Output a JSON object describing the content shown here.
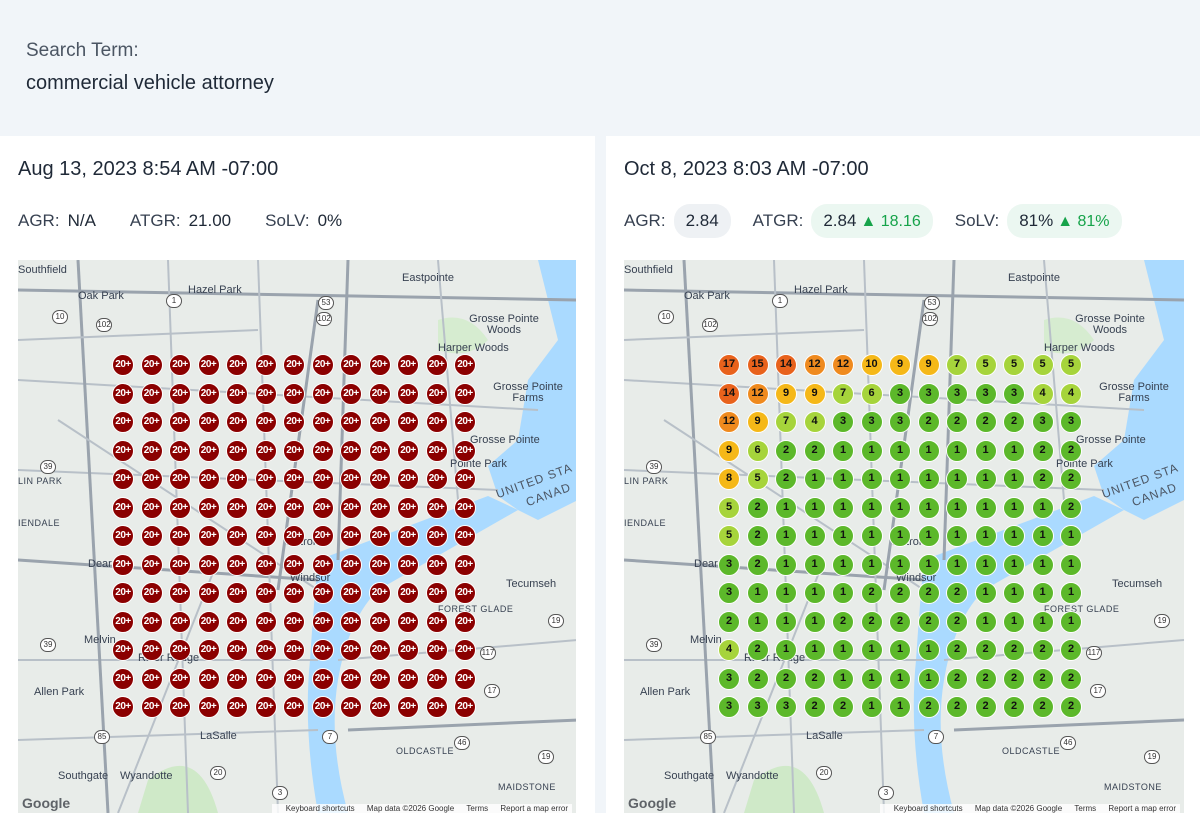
{
  "search": {
    "label": "Search Term:",
    "term": "commercial vehicle attorney"
  },
  "colors": {
    "rank_20plus": "#8b0000",
    "rank_top3": "#5cb82a",
    "rank_4_7": "#a6d43b",
    "rank_8_10": "#f5b818",
    "rank_11_13": "#ef8a1e",
    "rank_14_plus": "#e8621c",
    "delta_up": "#16a34a"
  },
  "map_labels": {
    "southfield": "Southfield",
    "oak_park": "Oak Park",
    "hazel_park": "Hazel Park",
    "eastpointe": "Eastpointe",
    "grosse_pointe_woods": "Grosse Pointe Woods",
    "harper_woods": "Harper Woods",
    "grosse_pointe_farms": "Grosse Pointe Farms",
    "grosse_pointe": "Grosse Pointe",
    "pointe_park": "Pointe Park",
    "lin_park": "LIN PARK",
    "iendale": "IENDALE",
    "united_states": "UNITED STA",
    "canada": "CANAD",
    "detroit": "Detroit",
    "windsor": "Windsor",
    "dear": "Dear",
    "tecumseh": "Tecumseh",
    "forest_glade": "FOREST GLADE",
    "melvin": "Melvin",
    "river_rouge": "River Rouge",
    "allen_park": "Allen Park",
    "lasalle": "LaSalle",
    "oldcastle": "OLDCASTLE",
    "southgate": "Southgate",
    "wyandotte": "Wyandotte",
    "maidstone": "MAIDSTONE",
    "google": "Google",
    "keyboard_shortcuts": "Keyboard shortcuts",
    "map_data": "Map data ©2026 Google",
    "terms": "Terms",
    "report": "Report a map error",
    "shields": [
      "10",
      "102",
      "1",
      "53",
      "102",
      "39",
      "39",
      "85",
      "20",
      "3",
      "7",
      "46",
      "19",
      "17",
      "117",
      "19"
    ]
  },
  "left": {
    "date": "Aug 13, 2023 8:54 AM -07:00",
    "agr_label": "AGR:",
    "agr_value": "N/A",
    "atgr_label": "ATGR:",
    "atgr_value": "21.00",
    "solv_label": "SoLV:",
    "solv_value": "0%",
    "grid_value": "20+"
  },
  "right": {
    "date": "Oct 8, 2023 8:03 AM -07:00",
    "agr_label": "AGR:",
    "agr_value": "2.84",
    "atgr_label": "ATGR:",
    "atgr_value": "2.84",
    "atgr_delta": "▲ 18.16",
    "solv_label": "SoLV:",
    "solv_value": "81%",
    "solv_delta": "▲ 81%",
    "grid": [
      [
        "17",
        "15",
        "14",
        "12",
        "12",
        "10",
        "9",
        "9",
        "7",
        "5",
        "5",
        "5",
        "5"
      ],
      [
        "14",
        "12",
        "9",
        "9",
        "7",
        "6",
        "3",
        "3",
        "3",
        "3",
        "3",
        "4",
        "4"
      ],
      [
        "12",
        "9",
        "7",
        "4",
        "3",
        "3",
        "3",
        "2",
        "2",
        "2",
        "2",
        "3",
        "3"
      ],
      [
        "9",
        "6",
        "2",
        "2",
        "1",
        "1",
        "1",
        "1",
        "1",
        "1",
        "1",
        "2",
        "2"
      ],
      [
        "8",
        "5",
        "2",
        "1",
        "1",
        "1",
        "1",
        "1",
        "1",
        "1",
        "1",
        "2",
        "2"
      ],
      [
        "5",
        "2",
        "1",
        "1",
        "1",
        "1",
        "1",
        "1",
        "1",
        "1",
        "1",
        "1",
        "2"
      ],
      [
        "5",
        "2",
        "1",
        "1",
        "1",
        "1",
        "1",
        "1",
        "1",
        "1",
        "1",
        "1",
        "1"
      ],
      [
        "3",
        "2",
        "1",
        "1",
        "1",
        "1",
        "1",
        "1",
        "1",
        "1",
        "1",
        "1",
        "1"
      ],
      [
        "3",
        "1",
        "1",
        "1",
        "1",
        "2",
        "2",
        "2",
        "2",
        "1",
        "1",
        "1",
        "1"
      ],
      [
        "2",
        "1",
        "1",
        "1",
        "2",
        "2",
        "2",
        "2",
        "2",
        "1",
        "1",
        "1",
        "1"
      ],
      [
        "4",
        "2",
        "1",
        "1",
        "1",
        "1",
        "1",
        "1",
        "2",
        "2",
        "2",
        "2",
        "2"
      ],
      [
        "3",
        "2",
        "2",
        "2",
        "1",
        "1",
        "1",
        "1",
        "2",
        "2",
        "2",
        "2",
        "2"
      ],
      [
        "3",
        "3",
        "3",
        "2",
        "2",
        "1",
        "1",
        "2",
        "2",
        "2",
        "2",
        "2",
        "2"
      ]
    ]
  }
}
